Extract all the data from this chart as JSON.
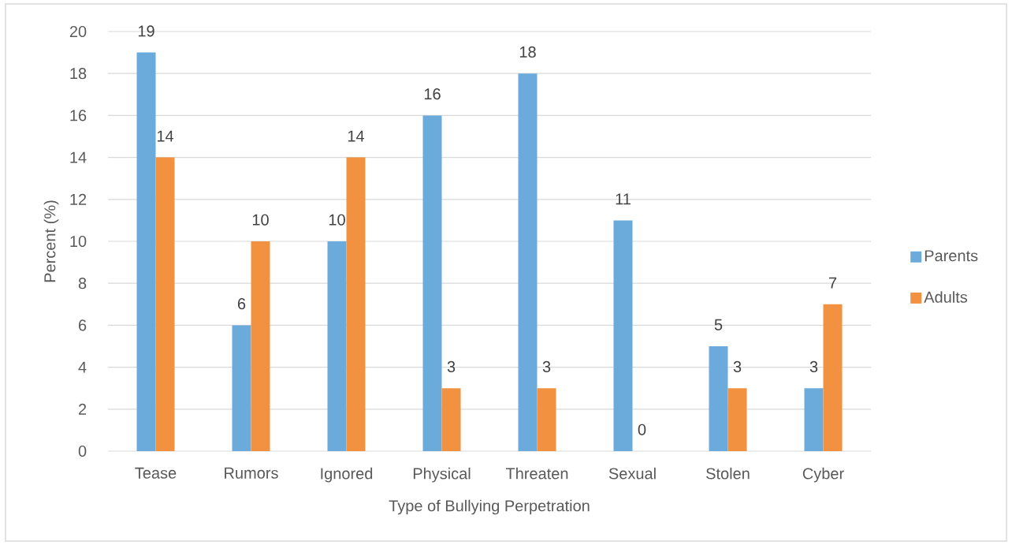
{
  "chart_data": {
    "type": "bar",
    "xlabel": "Type of Bullying Perpetration",
    "ylabel": "Percent (%)",
    "categories": [
      "Tease",
      "Rumors",
      "Ignored",
      "Physical",
      "Threaten",
      "Sexual",
      "Stolen",
      "Cyber"
    ],
    "series": [
      {
        "name": "Parents",
        "color": "#6aabdc",
        "values": [
          19,
          6,
          10,
          16,
          18,
          11,
          5,
          3
        ]
      },
      {
        "name": "Adults",
        "color": "#f29241",
        "values": [
          14,
          10,
          14,
          3,
          3,
          0,
          3,
          7
        ]
      }
    ],
    "ylim": [
      0,
      20
    ],
    "yticks": [
      0,
      2,
      4,
      6,
      8,
      10,
      12,
      14,
      16,
      18,
      20
    ],
    "grid": "y",
    "legend": "right",
    "data_labels": true
  }
}
